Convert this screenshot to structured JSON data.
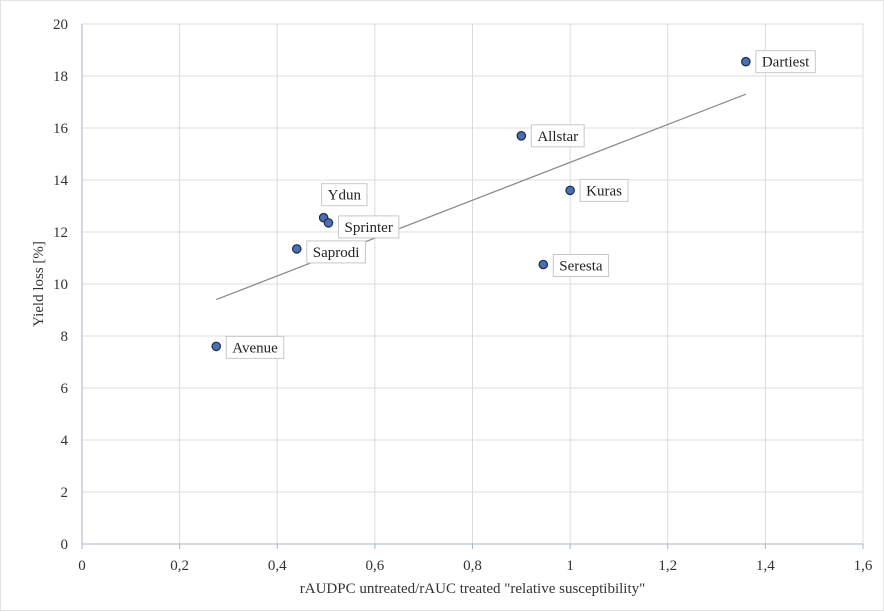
{
  "chart_data": {
    "type": "scatter",
    "title": "",
    "xlabel": "rAUDPC untreated/rAUC treated  \"relative susceptibility\"",
    "ylabel": "Yield loss [%]",
    "xlim": [
      0,
      1.6
    ],
    "ylim": [
      0,
      20
    ],
    "x_ticks": [
      0,
      0.2,
      0.4,
      0.6,
      0.8,
      1.0,
      1.2,
      1.4,
      1.6
    ],
    "x_tick_labels": [
      "0",
      "0,2",
      "0,4",
      "0,6",
      "0,8",
      "1",
      "1,2",
      "1,4",
      "1,6"
    ],
    "y_ticks": [
      0,
      2,
      4,
      6,
      8,
      10,
      12,
      14,
      16,
      18,
      20
    ],
    "y_tick_labels": [
      "0",
      "2",
      "4",
      "6",
      "8",
      "10",
      "12",
      "14",
      "16",
      "18",
      "20"
    ],
    "grid": true,
    "legend": "none",
    "marker_color": "#4a6fb5",
    "trend_color": "#8a8a8a",
    "points": [
      {
        "label": "Dartiest",
        "x": 1.36,
        "y": 18.55
      },
      {
        "label": "Allstar",
        "x": 0.9,
        "y": 15.7
      },
      {
        "label": "Kuras",
        "x": 1.0,
        "y": 13.6
      },
      {
        "label": "Ydun",
        "x": 0.495,
        "y": 12.55
      },
      {
        "label": "Sprinter",
        "x": 0.505,
        "y": 12.35
      },
      {
        "label": "Saprodi",
        "x": 0.44,
        "y": 11.35
      },
      {
        "label": "Seresta",
        "x": 0.945,
        "y": 10.75
      },
      {
        "label": "Avenue",
        "x": 0.275,
        "y": 7.6
      }
    ],
    "trendline": {
      "x": [
        0.275,
        1.36
      ],
      "y": [
        9.4,
        17.3
      ]
    }
  }
}
